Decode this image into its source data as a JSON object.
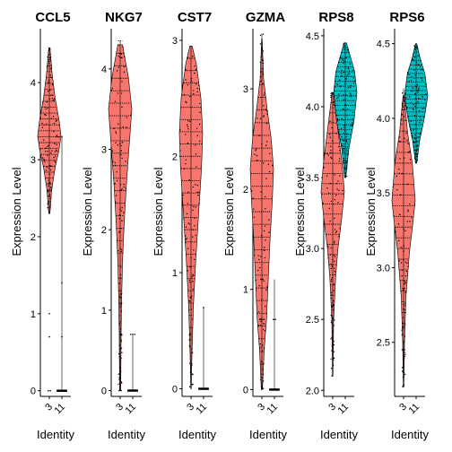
{
  "chart_data": [
    {
      "type": "violin",
      "title": "CCL5",
      "xlabel": "Identity",
      "ylabel": "Expression Level",
      "categories": [
        "3",
        "11"
      ],
      "colors": [
        "#F8766D",
        "#00BFC4"
      ],
      "yticks": [
        0,
        1,
        2,
        3,
        4
      ],
      "ylim": [
        -0.05,
        4.7
      ],
      "groups": [
        {
          "name": "3",
          "shape": [
            [
              2.3,
              0.05
            ],
            [
              2.6,
              0.2
            ],
            [
              2.9,
              0.5
            ],
            [
              3.1,
              0.8
            ],
            [
              3.3,
              1.0
            ],
            [
              3.5,
              0.85
            ],
            [
              3.8,
              0.5
            ],
            [
              4.1,
              0.25
            ],
            [
              4.45,
              0.05
            ]
          ],
          "ymin": 2.3,
          "ymax": 4.45,
          "dots": [
            [
              0.7,
              1
            ],
            [
              1.0,
              1
            ],
            [
              0.0,
              2
            ]
          ]
        },
        {
          "name": "11",
          "shape": [
            [
              0.0,
              1.0
            ],
            [
              0.0,
              0.0
            ]
          ],
          "ymin": 0.0,
          "ymax": 3.3,
          "dots": [
            [
              1.4,
              1
            ],
            [
              0.7,
              1
            ],
            [
              3.3,
              1
            ],
            [
              0.0,
              3
            ]
          ]
        }
      ]
    },
    {
      "type": "violin",
      "title": "NKG7",
      "xlabel": "Identity",
      "ylabel": "Expression Level",
      "categories": [
        "3",
        "11"
      ],
      "colors": [
        "#F8766D",
        "#00BFC4"
      ],
      "yticks": [
        0,
        1,
        2,
        3,
        4
      ],
      "ylim": [
        -0.05,
        4.5
      ],
      "groups": [
        {
          "name": "3",
          "shape": [
            [
              0.0,
              0.05
            ],
            [
              0.7,
              0.08
            ],
            [
              1.1,
              0.12
            ],
            [
              1.6,
              0.2
            ],
            [
              2.1,
              0.35
            ],
            [
              2.6,
              0.55
            ],
            [
              3.1,
              0.8
            ],
            [
              3.5,
              1.0
            ],
            [
              3.9,
              0.7
            ],
            [
              4.3,
              0.2
            ]
          ],
          "ymin": 0.0,
          "ymax": 4.35,
          "dots": [
            [
              0.7,
              1
            ],
            [
              0.0,
              2
            ]
          ]
        },
        {
          "name": "11",
          "shape": [
            [
              0.0,
              1.0
            ],
            [
              0.0,
              0.0
            ]
          ],
          "ymin": 0.0,
          "ymax": 0.7,
          "dots": [
            [
              0.7,
              3
            ],
            [
              0.0,
              3
            ]
          ]
        }
      ]
    },
    {
      "type": "violin",
      "title": "CST7",
      "xlabel": "Identity",
      "ylabel": "Expression Level",
      "categories": [
        "3",
        "11"
      ],
      "colors": [
        "#F8766D",
        "#00BFC4"
      ],
      "yticks": [
        0,
        1,
        2,
        3
      ],
      "ylim": [
        -0.05,
        3.1
      ],
      "groups": [
        {
          "name": "3",
          "shape": [
            [
              0.0,
              0.02
            ],
            [
              0.3,
              0.08
            ],
            [
              0.7,
              0.2
            ],
            [
              1.1,
              0.4
            ],
            [
              1.5,
              0.65
            ],
            [
              1.9,
              0.9
            ],
            [
              2.2,
              1.0
            ],
            [
              2.5,
              0.85
            ],
            [
              2.8,
              0.45
            ],
            [
              2.95,
              0.1
            ]
          ],
          "ymin": 0.0,
          "ymax": 2.95,
          "dots": []
        },
        {
          "name": "11",
          "shape": [
            [
              0.0,
              1.0
            ],
            [
              0.0,
              0.0
            ]
          ],
          "ymin": 0.0,
          "ymax": 0.7,
          "dots": [
            [
              0.7,
              1
            ],
            [
              0.0,
              2
            ]
          ]
        }
      ]
    },
    {
      "type": "violin",
      "title": "GZMA",
      "xlabel": "Identity",
      "ylabel": "Expression Level",
      "categories": [
        "3",
        "11"
      ],
      "colors": [
        "#F8766D",
        "#00BFC4"
      ],
      "yticks": [
        0,
        1,
        2,
        3
      ],
      "ylim": [
        -0.05,
        3.6
      ],
      "groups": [
        {
          "name": "3",
          "shape": [
            [
              0.0,
              0.05
            ],
            [
              0.4,
              0.2
            ],
            [
              0.7,
              0.4
            ],
            [
              1.1,
              0.55
            ],
            [
              1.5,
              0.7
            ],
            [
              1.9,
              0.9
            ],
            [
              2.2,
              1.0
            ],
            [
              2.5,
              0.8
            ],
            [
              2.8,
              0.45
            ],
            [
              3.1,
              0.15
            ],
            [
              3.5,
              0.02
            ]
          ],
          "ymin": 0.0,
          "ymax": 3.55,
          "dots": [
            [
              0.7,
              3
            ],
            [
              1.1,
              2
            ]
          ]
        },
        {
          "name": "11",
          "shape": [
            [
              0.0,
              1.0
            ],
            [
              0.0,
              0.0
            ]
          ],
          "ymin": 0.0,
          "ymax": 1.1,
          "dots": [
            [
              0.7,
              2
            ],
            [
              0.0,
              2
            ]
          ]
        }
      ]
    },
    {
      "type": "violin",
      "title": "RPS8",
      "xlabel": "Identity",
      "ylabel": "Expression Level",
      "categories": [
        "3",
        "11"
      ],
      "colors": [
        "#F8766D",
        "#00BFC4"
      ],
      "yticks": [
        2.0,
        2.5,
        3.0,
        3.5,
        4.0,
        4.5
      ],
      "ylim": [
        1.97,
        4.55
      ],
      "groups": [
        {
          "name": "3",
          "shape": [
            [
              2.1,
              0.02
            ],
            [
              2.5,
              0.08
            ],
            [
              2.8,
              0.25
            ],
            [
              3.0,
              0.45
            ],
            [
              3.2,
              0.75
            ],
            [
              3.4,
              1.0
            ],
            [
              3.6,
              0.8
            ],
            [
              3.8,
              0.5
            ],
            [
              4.0,
              0.2
            ],
            [
              4.1,
              0.05
            ]
          ],
          "ymin": 2.1,
          "ymax": 4.1,
          "dots": []
        },
        {
          "name": "11",
          "shape": [
            [
              3.5,
              0.05
            ],
            [
              3.7,
              0.3
            ],
            [
              3.9,
              0.75
            ],
            [
              4.1,
              1.0
            ],
            [
              4.25,
              0.8
            ],
            [
              4.35,
              0.45
            ],
            [
              4.45,
              0.1
            ]
          ],
          "ymin": 3.5,
          "ymax": 4.45,
          "dots": []
        }
      ]
    },
    {
      "type": "violin",
      "title": "RPS6",
      "xlabel": "Identity",
      "ylabel": "Expression Level",
      "categories": [
        "3",
        "11"
      ],
      "colors": [
        "#F8766D",
        "#00BFC4"
      ],
      "yticks": [
        2.5,
        3.0,
        3.5,
        4.0,
        4.5
      ],
      "ylim": [
        2.15,
        4.6
      ],
      "groups": [
        {
          "name": "3",
          "shape": [
            [
              2.2,
              0.02
            ],
            [
              2.5,
              0.08
            ],
            [
              2.8,
              0.2
            ],
            [
              3.1,
              0.5
            ],
            [
              3.3,
              0.8
            ],
            [
              3.45,
              1.0
            ],
            [
              3.7,
              0.75
            ],
            [
              3.9,
              0.35
            ],
            [
              4.15,
              0.05
            ]
          ],
          "ymin": 2.2,
          "ymax": 4.2,
          "dots": []
        },
        {
          "name": "11",
          "shape": [
            [
              3.7,
              0.05
            ],
            [
              3.85,
              0.3
            ],
            [
              4.0,
              0.7
            ],
            [
              4.15,
              1.0
            ],
            [
              4.3,
              0.75
            ],
            [
              4.4,
              0.35
            ],
            [
              4.5,
              0.05
            ]
          ],
          "ymin": 3.7,
          "ymax": 4.5,
          "dots": []
        }
      ]
    }
  ]
}
